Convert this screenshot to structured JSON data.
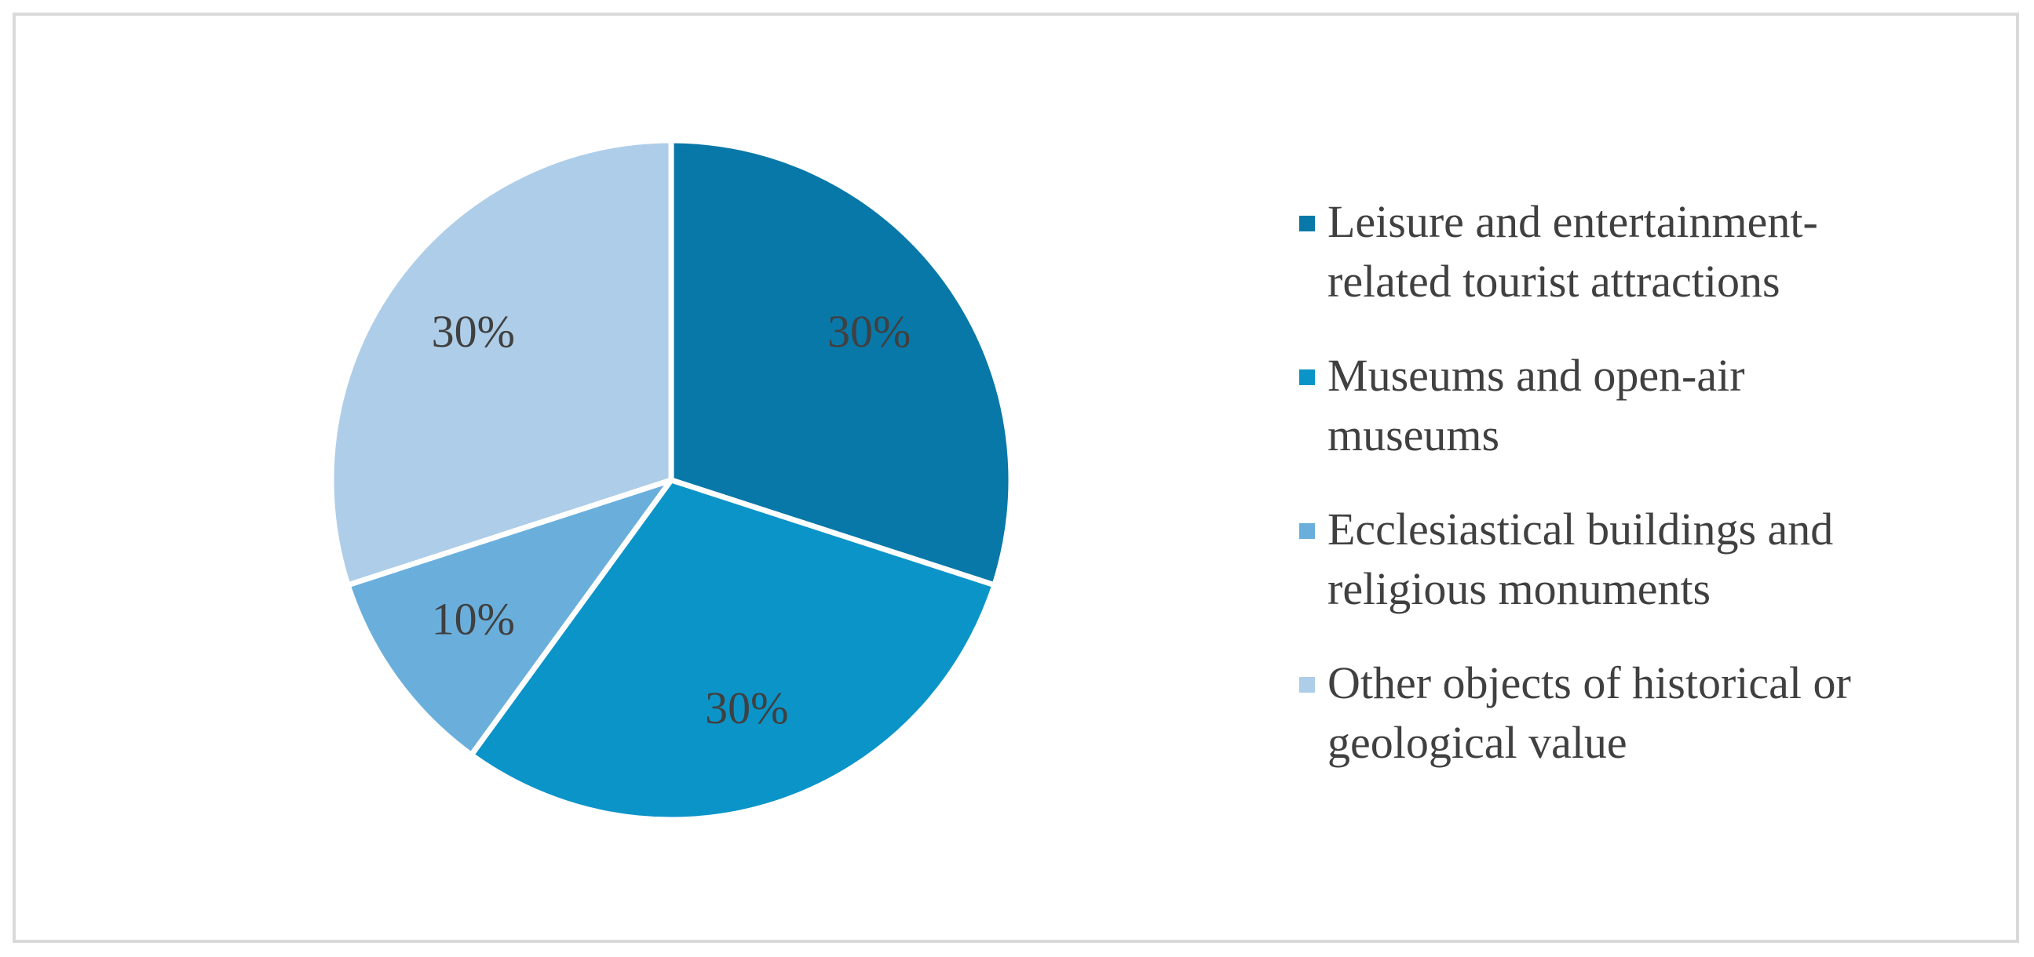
{
  "chart_data": {
    "type": "pie",
    "categories": [
      "Leisure and entertainment-related tourist attractions",
      "Museums and open-air museums",
      "Ecclesiastical buildings and religious monuments",
      "Other objects of historical or geological value"
    ],
    "values": [
      30,
      30,
      10,
      30
    ],
    "value_labels": [
      "30%",
      "30%",
      "10%",
      "30%"
    ],
    "colors": [
      "#0878a8",
      "#0b94c8",
      "#6aafdc",
      "#aecde8"
    ],
    "legend": "right"
  }
}
